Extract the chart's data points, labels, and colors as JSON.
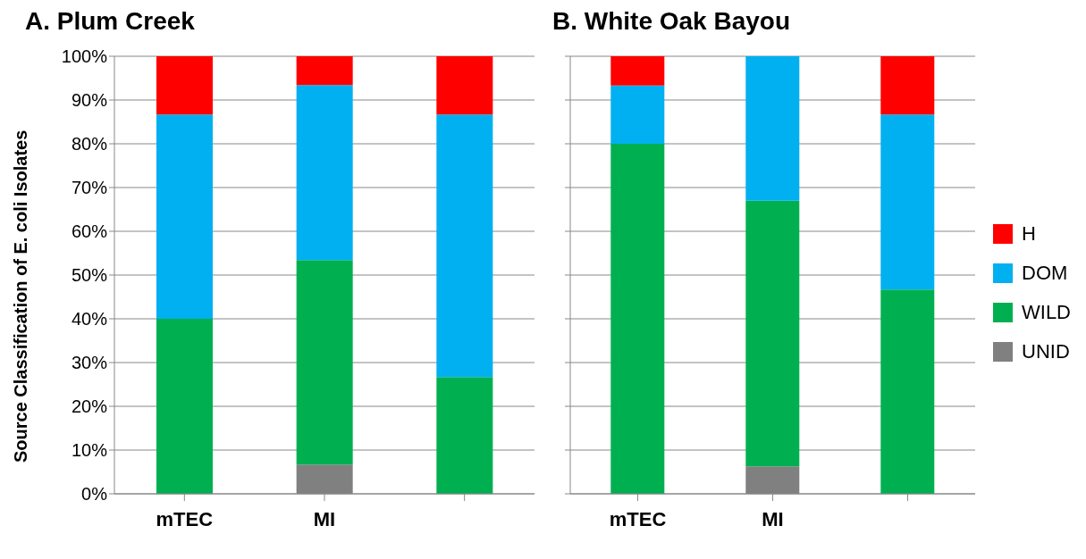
{
  "chart_data": [
    {
      "type": "bar",
      "title": "A.  Plum Creek",
      "ylabel": "Source Classification of E. coli Isolates",
      "categories": [
        "mTEC",
        "MI",
        null
      ],
      "stacked": true,
      "grid": "y",
      "legend": false,
      "ylim": [
        0,
        100
      ],
      "yticks": [
        {
          "value": 0,
          "label": "0%"
        },
        {
          "value": 10,
          "label": "10%"
        },
        {
          "value": 20,
          "label": "20%"
        },
        {
          "value": 30,
          "label": "30%"
        },
        {
          "value": 40,
          "label": "40%"
        },
        {
          "value": 50,
          "label": "50%"
        },
        {
          "value": 60,
          "label": "60%"
        },
        {
          "value": 70,
          "label": "70%"
        },
        {
          "value": 80,
          "label": "80%"
        },
        {
          "value": 90,
          "label": "90%"
        },
        {
          "value": 100,
          "label": "100%"
        }
      ],
      "series": [
        {
          "color": "#808080",
          "values": [
            0,
            6.7,
            0
          ]
        },
        {
          "color": "#00b050",
          "values": [
            40,
            46.7,
            26.7
          ]
        },
        {
          "color": "#00b0f0",
          "values": [
            46.7,
            40,
            60
          ]
        },
        {
          "color": "#ff0000",
          "values": [
            13.3,
            6.6,
            13.3
          ]
        }
      ]
    },
    {
      "type": "bar",
      "title": "B.  White Oak Bayou",
      "categories": [
        "mTEC",
        "MI",
        null
      ],
      "stacked": true,
      "grid": "y",
      "legend": "right",
      "tick_labels": "x",
      "ylim": [
        0,
        100
      ],
      "yticks": [
        {
          "value": 0,
          "label": null
        },
        {
          "value": 10,
          "label": null
        },
        {
          "value": 20,
          "label": null
        },
        {
          "value": 30,
          "label": null
        },
        {
          "value": 40,
          "label": null
        },
        {
          "value": 50,
          "label": null
        },
        {
          "value": 60,
          "label": null
        },
        {
          "value": 70,
          "label": null
        },
        {
          "value": 80,
          "label": null
        },
        {
          "value": 90,
          "label": null
        },
        {
          "value": 100,
          "label": null
        }
      ],
      "series": [
        {
          "name": "UNID",
          "color": "#808080",
          "values": [
            0,
            6.3,
            0
          ]
        },
        {
          "name": "WILD",
          "color": "#00b050",
          "values": [
            80,
            60.7,
            46.7
          ]
        },
        {
          "name": "DOM",
          "color": "#00b0f0",
          "values": [
            13.3,
            33,
            40
          ]
        },
        {
          "name": "H",
          "color": "#ff0000",
          "values": [
            6.7,
            0,
            13.3
          ]
        }
      ]
    }
  ]
}
